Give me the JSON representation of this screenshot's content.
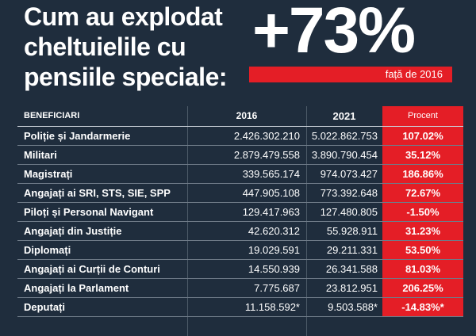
{
  "headline": {
    "lines": [
      "Cum au explodat",
      "cheltuielile cu",
      "pensiile speciale:"
    ],
    "big_percent": "+73%",
    "comparison_note": "față de 2016"
  },
  "table": {
    "headers": {
      "beneficiary": "BENEFICIARI",
      "year_2016": "2016",
      "year_2021": "2021",
      "percent": "Procent"
    },
    "rows": [
      {
        "name": "Poliție și Jandarmerie",
        "v2016": "2.426.302.210",
        "v2021": "5.022.862.753",
        "pct": "107.02%"
      },
      {
        "name": "Militari",
        "v2016": "2.879.479.558",
        "v2021": "3.890.790.454",
        "pct": "35.12%"
      },
      {
        "name": "Magistrați",
        "v2016": "339.565.174",
        "v2021": "974.073.427",
        "pct": "186.86%"
      },
      {
        "name": "Angajați ai SRI, STS, SIE, SPP",
        "v2016": "447.905.108",
        "v2021": "773.392.648",
        "pct": "72.67%"
      },
      {
        "name": "Piloți și Personal Navigant",
        "v2016": "129.417.963",
        "v2021": "127.480.805",
        "pct": "-1.50%"
      },
      {
        "name": "Angajați din Justiție",
        "v2016": "42.620.312",
        "v2021": "55.928.911",
        "pct": "31.23%"
      },
      {
        "name": "Diplomați",
        "v2016": "19.029.591",
        "v2021": "29.211.331",
        "pct": "53.50%"
      },
      {
        "name": "Angajați ai Curții de Conturi",
        "v2016": "14.550.939",
        "v2021": "26.341.588",
        "pct": "81.03%"
      },
      {
        "name": "Angajați la Parlament",
        "v2016": "7.775.687",
        "v2021": "23.812.951",
        "pct": "206.25%"
      },
      {
        "name": "Deputați",
        "v2016": "11.158.592*",
        "v2021": "9.503.588*",
        "pct": "-14.83%*"
      }
    ]
  },
  "colors": {
    "background": "#1f2d3d",
    "accent_red": "#e41e26",
    "text": "#ffffff"
  }
}
